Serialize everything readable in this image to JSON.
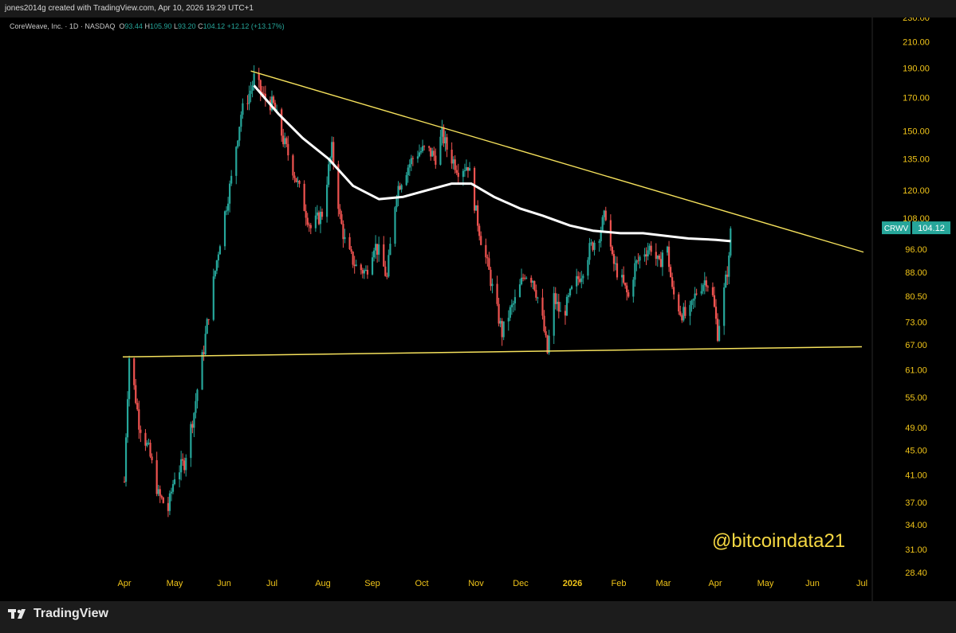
{
  "header": {
    "created_text": "jones2014g created with TradingView.com, Apr 10, 2026 19:29 UTC+1"
  },
  "legend": {
    "name": "CoreWeave, Inc. · 1D · NASDAQ",
    "open_label": "O",
    "open": "93.44",
    "high_label": "H",
    "high": "105.90",
    "low_label": "L",
    "low": "93.20",
    "close_label": "C",
    "close": "104.12",
    "change": "+12.12 (+13.17%)"
  },
  "watermark": "@bitcoindata21",
  "footer": {
    "brand": "TradingView"
  },
  "colors": {
    "up": "#26a69a",
    "down": "#ef5350",
    "trendline": "#f5e15c",
    "moving_average": "#ffffff",
    "axis_text": "#f0c419",
    "price_tag_bg": "#26a69a",
    "watermark": "#f5d742"
  },
  "chart_data": {
    "type": "candlestick",
    "symbol": "CRWV",
    "last_price": "104.12",
    "y_scale": "log",
    "ylim": [
      28.4,
      230
    ],
    "y_ticks": [
      "230.00",
      "210.00",
      "190.00",
      "170.00",
      "150.00",
      "135.00",
      "120.00",
      "108.00",
      "96.00",
      "88.00",
      "80.50",
      "73.00",
      "67.00",
      "61.00",
      "55.00",
      "49.00",
      "45.00",
      "41.00",
      "37.00",
      "34.00",
      "31.00",
      "28.40"
    ],
    "x_ticks": [
      "Apr",
      "May",
      "Jun",
      "Jul",
      "Aug",
      "Sep",
      "Oct",
      "Nov",
      "Dec",
      "2026",
      "Feb",
      "Mar",
      "Apr",
      "May",
      "Jun",
      "Jul"
    ],
    "price_path": [
      [
        "2025-04-01",
        40
      ],
      [
        "2025-04-04",
        64
      ],
      [
        "2025-04-10",
        50
      ],
      [
        "2025-04-16",
        45
      ],
      [
        "2025-04-22",
        38
      ],
      [
        "2025-04-28",
        36
      ],
      [
        "2025-05-02",
        41
      ],
      [
        "2025-05-08",
        43
      ],
      [
        "2025-05-14",
        52
      ],
      [
        "2025-05-20",
        66
      ],
      [
        "2025-05-26",
        85
      ],
      [
        "2025-06-02",
        110
      ],
      [
        "2025-06-06",
        125
      ],
      [
        "2025-06-12",
        160
      ],
      [
        "2025-06-18",
        175
      ],
      [
        "2025-06-20",
        183
      ],
      [
        "2025-06-26",
        170
      ],
      [
        "2025-07-02",
        165
      ],
      [
        "2025-07-08",
        145
      ],
      [
        "2025-07-14",
        130
      ],
      [
        "2025-07-20",
        115
      ],
      [
        "2025-07-25",
        104
      ],
      [
        "2025-08-01",
        110
      ],
      [
        "2025-08-07",
        140
      ],
      [
        "2025-08-12",
        108
      ],
      [
        "2025-08-16",
        96
      ],
      [
        "2025-08-22",
        90
      ],
      [
        "2025-08-28",
        88
      ],
      [
        "2025-09-02",
        98
      ],
      [
        "2025-09-05",
        95
      ],
      [
        "2025-09-10",
        86
      ],
      [
        "2025-09-12",
        97
      ],
      [
        "2025-09-16",
        120
      ],
      [
        "2025-09-22",
        130
      ],
      [
        "2025-09-28",
        138
      ],
      [
        "2025-10-04",
        140
      ],
      [
        "2025-10-10",
        136
      ],
      [
        "2025-10-14",
        148
      ],
      [
        "2025-10-18",
        138
      ],
      [
        "2025-10-24",
        130
      ],
      [
        "2025-10-30",
        132
      ],
      [
        "2025-11-04",
        110
      ],
      [
        "2025-11-07",
        100
      ],
      [
        "2025-11-12",
        88
      ],
      [
        "2025-11-16",
        78
      ],
      [
        "2025-11-20",
        70
      ],
      [
        "2025-11-24",
        75
      ],
      [
        "2025-11-29",
        80
      ],
      [
        "2025-12-04",
        88
      ],
      [
        "2025-12-09",
        86
      ],
      [
        "2025-12-14",
        76
      ],
      [
        "2025-12-18",
        65
      ],
      [
        "2025-12-22",
        80
      ],
      [
        "2025-12-27",
        74
      ],
      [
        "2026-01-02",
        82
      ],
      [
        "2026-01-08",
        88
      ],
      [
        "2026-01-13",
        96
      ],
      [
        "2026-01-19",
        102
      ],
      [
        "2026-01-23",
        110
      ],
      [
        "2026-01-27",
        92
      ],
      [
        "2026-02-02",
        85
      ],
      [
        "2026-02-06",
        80
      ],
      [
        "2026-02-10",
        90
      ],
      [
        "2026-02-15",
        95
      ],
      [
        "2026-02-20",
        97
      ],
      [
        "2026-02-25",
        90
      ],
      [
        "2026-03-01",
        100
      ],
      [
        "2026-03-05",
        82
      ],
      [
        "2026-03-10",
        76
      ],
      [
        "2026-03-15",
        74
      ],
      [
        "2026-03-20",
        82
      ],
      [
        "2026-03-26",
        86
      ],
      [
        "2026-03-30",
        80
      ],
      [
        "2026-04-02",
        70
      ],
      [
        "2026-04-06",
        82
      ],
      [
        "2026-04-09",
        92
      ],
      [
        "2026-04-10",
        104.12
      ]
    ],
    "moving_average": [
      [
        "2025-06-20",
        178
      ],
      [
        "2025-07-05",
        160
      ],
      [
        "2025-07-20",
        146
      ],
      [
        "2025-08-05",
        135
      ],
      [
        "2025-08-20",
        122
      ],
      [
        "2025-09-05",
        116
      ],
      [
        "2025-09-20",
        117
      ],
      [
        "2025-10-05",
        120
      ],
      [
        "2025-10-20",
        123
      ],
      [
        "2025-11-01",
        123
      ],
      [
        "2025-11-15",
        117
      ],
      [
        "2025-12-01",
        112
      ],
      [
        "2025-12-15",
        109
      ],
      [
        "2026-01-01",
        105
      ],
      [
        "2026-01-15",
        103
      ],
      [
        "2026-02-01",
        102
      ],
      [
        "2026-02-15",
        102
      ],
      [
        "2026-03-01",
        101
      ],
      [
        "2026-03-15",
        100
      ],
      [
        "2026-04-01",
        99.5
      ],
      [
        "2026-04-10",
        99
      ]
    ],
    "trendlines": [
      {
        "from": [
          "2025-06-18",
          188
        ],
        "to": [
          "2026-07-01",
          95
        ]
      },
      {
        "from": [
          "2025-03-31",
          64
        ],
        "to": [
          "2026-06-30",
          66.5
        ]
      }
    ]
  }
}
